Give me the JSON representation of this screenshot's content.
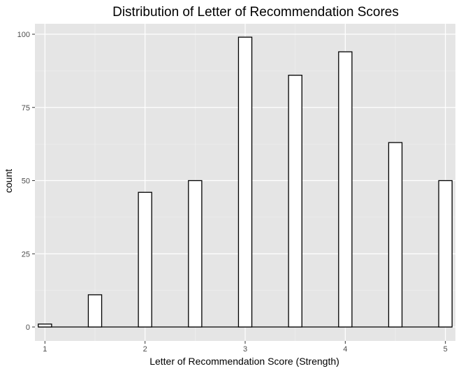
{
  "chart_data": {
    "type": "bar",
    "subtype": "histogram",
    "title": "Distribution of Letter of Recommendation Scores",
    "xlabel": "Letter of Recommendation Score (Strength)",
    "ylabel": "count",
    "xlim": [
      0.9,
      5.1
    ],
    "ylim": [
      0,
      100
    ],
    "x_ticks": [
      1,
      2,
      3,
      4,
      5
    ],
    "y_ticks": [
      0,
      25,
      50,
      75,
      100
    ],
    "bin_width": 0.1333,
    "bins": [
      {
        "x": 1.0,
        "count": 1
      },
      {
        "x": 1.5,
        "count": 11
      },
      {
        "x": 2.0,
        "count": 46
      },
      {
        "x": 2.5,
        "count": 50
      },
      {
        "x": 3.0,
        "count": 99
      },
      {
        "x": 3.5,
        "count": 86
      },
      {
        "x": 4.0,
        "count": 94
      },
      {
        "x": 4.5,
        "count": 63
      },
      {
        "x": 5.0,
        "count": 50
      }
    ],
    "grid": true,
    "colors": {
      "panel_background": "#e5e5e5",
      "grid_major": "#ffffff",
      "grid_minor": "#f2f2f2",
      "bar_fill": "#ffffff",
      "bar_outline": "#000000",
      "tick_text": "#4d4d4d",
      "axis_ticks": "#333333"
    }
  }
}
